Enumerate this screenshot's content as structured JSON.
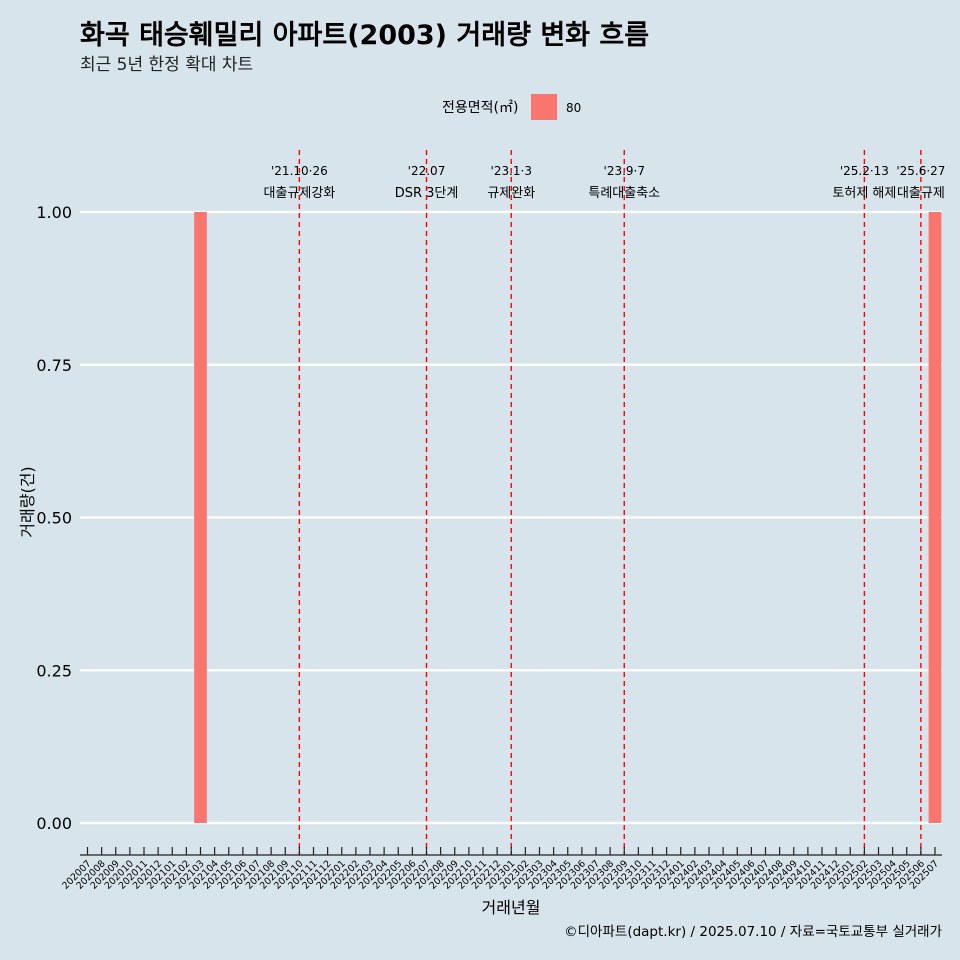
{
  "title": "화곡 태승훼밀리 아파트(2003) 거래량 변화 흐름",
  "subtitle": "최근 5년 한정 확대 차트",
  "caption": "©디아파트(dapt.kr) / 2025.07.10 / 자료=국토교통부 실거래가",
  "colors": {
    "background": "#d8e4eb",
    "bar": "#f8766d",
    "event_line": "#ff0000",
    "grid": "#ffffff"
  },
  "chart_data": {
    "type": "bar",
    "xlabel": "거래년월",
    "ylabel": "거래량(건)",
    "ylim": [
      0,
      1
    ],
    "yticks": [
      "0.00",
      "0.25",
      "0.50",
      "0.75",
      "1.00"
    ],
    "legend": {
      "title": "전용면적(㎡)",
      "position": "top",
      "entries": [
        "80"
      ]
    },
    "categories": [
      "202007",
      "202008",
      "202009",
      "202010",
      "202011",
      "202012",
      "202101",
      "202102",
      "202103",
      "202104",
      "202105",
      "202106",
      "202107",
      "202108",
      "202109",
      "202110",
      "202111",
      "202112",
      "202201",
      "202202",
      "202203",
      "202204",
      "202205",
      "202206",
      "202207",
      "202208",
      "202209",
      "202210",
      "202211",
      "202212",
      "202301",
      "202302",
      "202303",
      "202304",
      "202305",
      "202306",
      "202307",
      "202308",
      "202309",
      "202310",
      "202311",
      "202312",
      "202401",
      "202402",
      "202403",
      "202404",
      "202405",
      "202406",
      "202407",
      "202408",
      "202409",
      "202410",
      "202411",
      "202412",
      "202501",
      "202502",
      "202503",
      "202504",
      "202505",
      "202506",
      "202507"
    ],
    "series": [
      {
        "name": "80",
        "values": [
          {
            "x": "202103",
            "y": 1
          },
          {
            "x": "202507",
            "y": 1
          }
        ]
      }
    ],
    "events": [
      {
        "date": "'21.10·26",
        "label": "대출규제강화",
        "x": "202110"
      },
      {
        "date": "'22.07",
        "label": "DSR 3단계",
        "x": "202207"
      },
      {
        "date": "'23.1·3",
        "label": "규제완화",
        "x": "202301"
      },
      {
        "date": "'23.9·7",
        "label": "특례대출축소",
        "x": "202309"
      },
      {
        "date": "'25.2·13",
        "label": "토허제 해제",
        "x": "202502"
      },
      {
        "date": "'25.6·27",
        "label": "대출규제",
        "x": "202506"
      }
    ]
  }
}
